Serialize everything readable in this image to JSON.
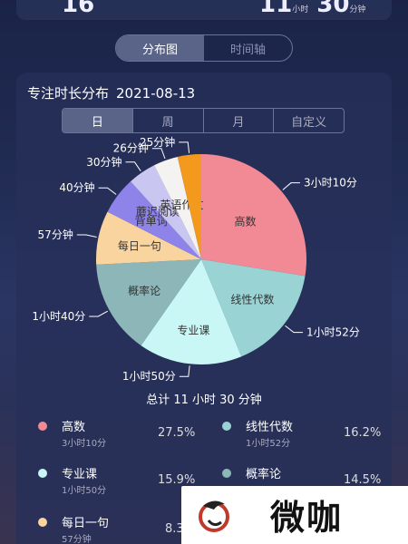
{
  "header": {
    "left_value": "16",
    "right_hours": "11",
    "right_hours_unit": "小时",
    "right_minutes": "30",
    "right_minutes_unit": "分钟"
  },
  "view_tabs": [
    {
      "label": "分布图",
      "active": true
    },
    {
      "label": "时间轴",
      "active": false
    }
  ],
  "card": {
    "title": "专注时长分布",
    "date": "2021-08-13"
  },
  "range_tabs": [
    {
      "label": "日",
      "active": true
    },
    {
      "label": "周",
      "active": false
    },
    {
      "label": "月",
      "active": false
    },
    {
      "label": "自定义",
      "active": false
    }
  ],
  "total": "总计 11 小时 30 分钟",
  "chart_data": {
    "type": "pie",
    "slices": [
      {
        "name": "高数",
        "duration": "3小时10分",
        "minutes": 190,
        "color": "#f28a95"
      },
      {
        "name": "线性代数",
        "duration": "1小时52分",
        "minutes": 112,
        "color": "#9ad3d4"
      },
      {
        "name": "专业课",
        "duration": "1小时50分",
        "minutes": 110,
        "color": "#c8f7f5"
      },
      {
        "name": "概率论",
        "duration": "1小时40分",
        "minutes": 100,
        "color": "#8cb6b8"
      },
      {
        "name": "每日一句",
        "duration": "57分钟",
        "minutes": 57,
        "color": "#fad49e"
      },
      {
        "name": "背单词",
        "duration": "40分钟",
        "minutes": 40,
        "color": "#8e83e8"
      },
      {
        "name": "蘑迟阅读技巧",
        "duration": "30分钟",
        "minutes": 30,
        "color": "#c9c6f2"
      },
      {
        "name": "英语作文",
        "duration": "26分钟",
        "minutes": 26,
        "color": "#f5f3f2"
      },
      {
        "name": "",
        "duration": "25分钟",
        "minutes": 25,
        "color": "#f39a1e"
      }
    ]
  },
  "legend": [
    {
      "name": "高数",
      "duration": "3小时10分",
      "percent": "27.5%",
      "color": "#f28a95"
    },
    {
      "name": "线性代数",
      "duration": "1小时52分",
      "percent": "16.2%",
      "color": "#9ad3d4"
    },
    {
      "name": "专业课",
      "duration": "1小时50分",
      "percent": "15.9%",
      "color": "#c8f7f5"
    },
    {
      "name": "概率论",
      "duration": "",
      "percent": "14.5%",
      "color": "#8cb6b8"
    },
    {
      "name": "每日一句",
      "duration": "57分钟",
      "percent": "8.3",
      "color": "#fad49e"
    }
  ],
  "watermark": {
    "text": "微咖"
  }
}
